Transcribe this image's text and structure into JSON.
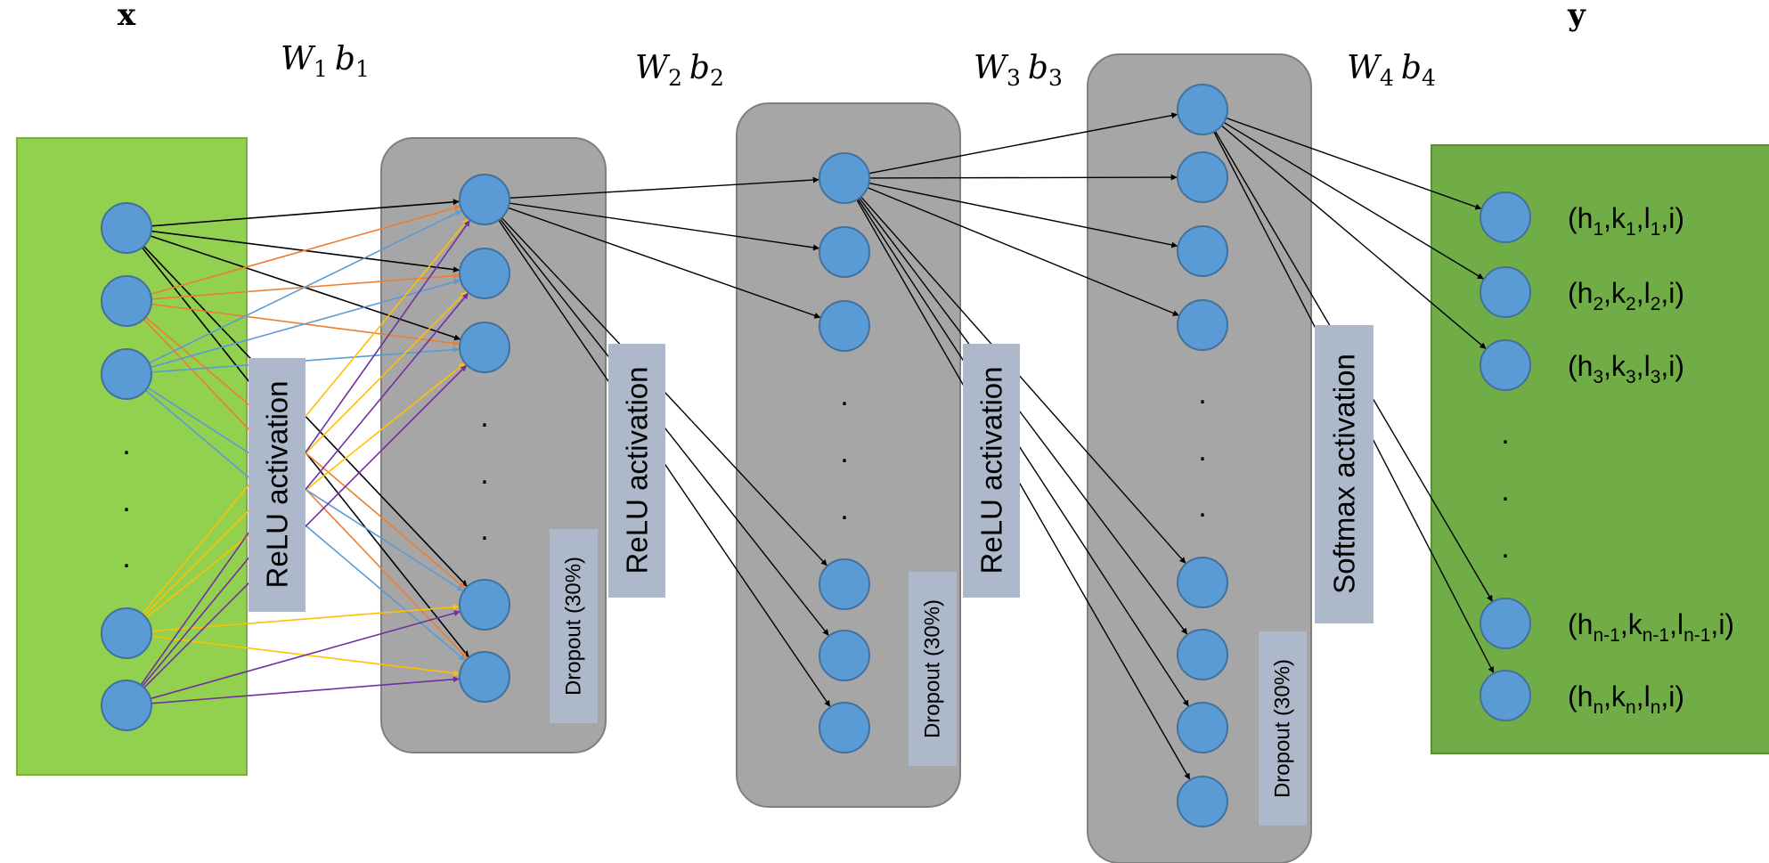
{
  "input_label": "x",
  "output_label": "y",
  "weights": [
    {
      "w": "W",
      "wsub": "1",
      "b": "b",
      "bsub": "1"
    },
    {
      "w": "W",
      "wsub": "2",
      "b": "b",
      "bsub": "2"
    },
    {
      "w": "W",
      "wsub": "3",
      "b": "b",
      "bsub": "3"
    },
    {
      "w": "W",
      "wsub": "4",
      "b": "b",
      "bsub": "4"
    }
  ],
  "activations": [
    "ReLU activation",
    "ReLU activation",
    "ReLU activation",
    "Softmax activation"
  ],
  "dropouts": [
    "Dropout (30%)",
    "Dropout (30%)",
    "Dropout (30%)"
  ],
  "ellipsis_dot": ".",
  "outputs": [
    {
      "open": "(",
      "h": "h",
      "k": "k",
      "l": "l",
      "sub": "1",
      "tail": ",i)",
      "sep": ","
    },
    {
      "open": "(",
      "h": "h",
      "k": "k",
      "l": "l",
      "sub": "2",
      "tail": ",i)",
      "sep": ","
    },
    {
      "open": "(",
      "h": "h",
      "k": "k",
      "l": "l",
      "sub": "3",
      "tail": ",i)",
      "sep": ","
    },
    {
      "open": "(",
      "h": "h",
      "k": "k",
      "l": "l",
      "sub": "n-1",
      "tail": ",i)",
      "sep": ","
    },
    {
      "open": "(",
      "h": "h",
      "k": "k",
      "l": "l",
      "sub": "n",
      "tail": ",i)",
      "sep": ","
    }
  ],
  "colors": {
    "input_fill": "#92D050",
    "input_stroke": "#7AAE3E",
    "output_fill": "#70AD47",
    "output_stroke": "#5A8E38",
    "hidden_fill": "#A6A6A6",
    "hidden_stroke": "#7F7F7F",
    "node_fill": "#5B9BD5",
    "node_stroke": "#41719C",
    "label_box": "#ADB9CA",
    "edge_black": "#000000",
    "edge_orange": "#ED7D31",
    "edge_blue": "#5B9BD5",
    "edge_yellow": "#FFC000",
    "edge_purple": "#7030A0"
  }
}
